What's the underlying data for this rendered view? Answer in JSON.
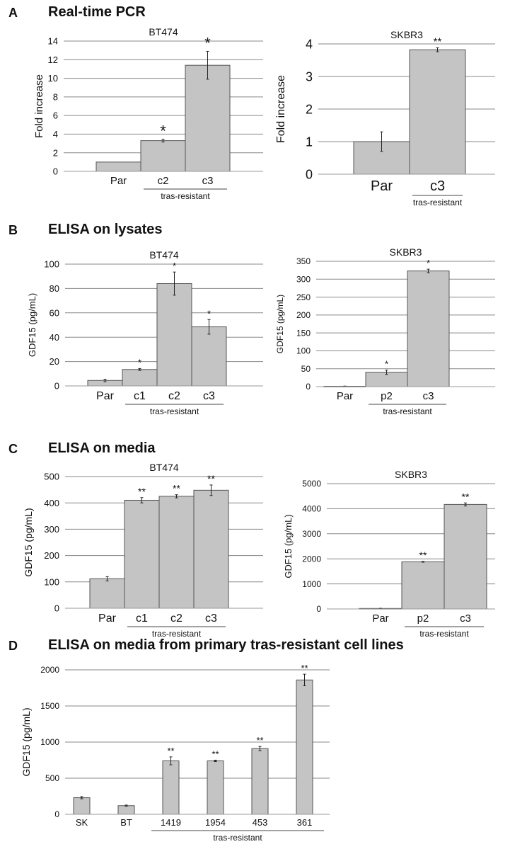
{
  "panels": [
    {
      "letter": "A",
      "title": "Real-time PCR"
    },
    {
      "letter": "B",
      "title": "ELISA on lysates"
    },
    {
      "letter": "C",
      "title": "ELISA on media"
    },
    {
      "letter": "D",
      "title": "ELISA on media from primary tras-resistant cell lines"
    }
  ],
  "style": {
    "bar_fill": "#c4c4c4",
    "bar_stroke": "#555555",
    "grid": "#888888",
    "axis": "#999999"
  },
  "chart_data": [
    {
      "id": "A-BT474",
      "type": "bar",
      "title": "BT474",
      "ylabel": "Fold increase",
      "ylim": [
        0,
        14
      ],
      "ticks": [
        0,
        2,
        4,
        6,
        8,
        10,
        12,
        14
      ],
      "grid": true,
      "categories": [
        "Par",
        "c2",
        "c3"
      ],
      "values": [
        1.0,
        3.3,
        11.4
      ],
      "errors": [
        0,
        0.15,
        1.5
      ],
      "annotations": [
        "",
        "*",
        "*"
      ],
      "group_label": "tras-resistant",
      "group": [
        1,
        2
      ]
    },
    {
      "id": "A-SKBR3",
      "type": "bar",
      "title": "SKBR3",
      "ylabel": "Fold increase",
      "ylim": [
        0,
        4
      ],
      "ticks": [
        0,
        1,
        2,
        3,
        4
      ],
      "grid": true,
      "categories": [
        "Par",
        "c3"
      ],
      "values": [
        1.0,
        3.82
      ],
      "errors": [
        0.3,
        0.06
      ],
      "annotations": [
        "",
        "**"
      ],
      "group_label": "tras-resistant",
      "group": [
        1,
        1
      ]
    },
    {
      "id": "B-BT474",
      "type": "bar",
      "title": "BT474",
      "ylabel": "GDF15 (pg/mL)",
      "ylim": [
        0,
        100
      ],
      "ticks": [
        0,
        20,
        40,
        60,
        80,
        100
      ],
      "grid": true,
      "categories": [
        "Par",
        "c1",
        "c2",
        "c3"
      ],
      "values": [
        4.5,
        13.5,
        84,
        48.5
      ],
      "errors": [
        1.0,
        0.8,
        9.5,
        6.0
      ],
      "annotations": [
        "",
        "*",
        "*",
        "*"
      ],
      "group_label": "tras-resistant",
      "group": [
        1,
        3
      ]
    },
    {
      "id": "B-SKBR3",
      "type": "bar",
      "title": "SKBR3",
      "ylabel": "GDF15 (pg/mL)",
      "ylim": [
        0,
        350
      ],
      "ticks": [
        0,
        50,
        100,
        150,
        200,
        250,
        300,
        350
      ],
      "grid": true,
      "categories": [
        "Par",
        "p2",
        "c3"
      ],
      "values": [
        1,
        40,
        323
      ],
      "errors": [
        0.5,
        6,
        5
      ],
      "annotations": [
        "",
        "*",
        "*"
      ],
      "group_label": "tras-resistant",
      "group": [
        1,
        2
      ]
    },
    {
      "id": "C-BT474",
      "type": "bar",
      "title": "BT474",
      "ylabel": "GDF15 (pg/mL)",
      "ylim": [
        0,
        500
      ],
      "ticks": [
        0,
        100,
        200,
        300,
        400,
        500
      ],
      "grid": true,
      "categories": [
        "Par",
        "c1",
        "c2",
        "c3"
      ],
      "values": [
        112,
        410,
        425,
        448
      ],
      "errors": [
        8,
        10,
        6,
        20
      ],
      "annotations": [
        "",
        "**",
        "**",
        "**"
      ],
      "group_label": "tras-resistant",
      "group": [
        1,
        3
      ]
    },
    {
      "id": "C-SKBR3",
      "type": "bar",
      "title": "SKBR3",
      "ylabel": "GDF15 (pg/mL)",
      "ylim": [
        0,
        5000
      ],
      "ticks": [
        0,
        1000,
        2000,
        3000,
        4000,
        5000
      ],
      "grid": true,
      "categories": [
        "Par",
        "p2",
        "c3"
      ],
      "values": [
        20,
        1880,
        4170
      ],
      "errors": [
        5,
        15,
        60
      ],
      "annotations": [
        "",
        "**",
        "**"
      ],
      "group_label": "tras-resistant",
      "group": [
        1,
        2
      ]
    },
    {
      "id": "D",
      "type": "bar",
      "title": "",
      "ylabel": "GDF15 (pg/mL)",
      "ylim": [
        0,
        2000
      ],
      "ticks": [
        0,
        500,
        1000,
        1500,
        2000
      ],
      "grid": true,
      "categories": [
        "SK",
        "BT",
        "1419",
        "1954",
        "453",
        "361"
      ],
      "values": [
        230,
        120,
        740,
        740,
        910,
        1860
      ],
      "errors": [
        15,
        8,
        55,
        10,
        30,
        80
      ],
      "annotations": [
        "",
        "",
        "**",
        "**",
        "**",
        "**"
      ],
      "group_label": "tras-resistant",
      "group": [
        2,
        5
      ]
    }
  ]
}
